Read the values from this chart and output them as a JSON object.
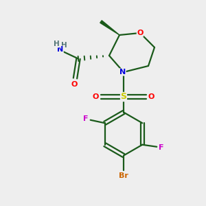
{
  "background_color": "#eeeeee",
  "atom_colors": {
    "O": "#ff0000",
    "N": "#0000dd",
    "S": "#cccc00",
    "F": "#cc00cc",
    "Br": "#cc6600",
    "C": "#1a1a1a",
    "H": "#557777"
  },
  "bond_color": "#1a5a1a",
  "bond_lw": 1.6,
  "figsize": [
    3.0,
    3.0
  ],
  "dpi": 100
}
